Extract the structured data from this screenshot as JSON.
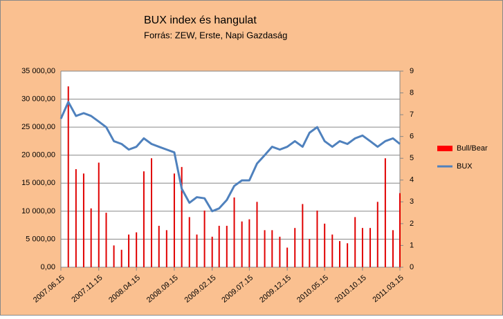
{
  "chart_data": {
    "type": "combo",
    "title": "BUX index és hangulat",
    "subtitle": "Forrás: ZEW, Erste, Napi Gazdaság",
    "x": [
      "2007.06.15",
      "2007.07.15",
      "2007.08.15",
      "2007.09.15",
      "2007.10.15",
      "2007.11.15",
      "2007.12.15",
      "2008.01.15",
      "2008.02.15",
      "2008.03.15",
      "2008.04.15",
      "2008.05.15",
      "2008.06.15",
      "2008.07.15",
      "2008.08.15",
      "2008.09.15",
      "2008.10.15",
      "2008.11.15",
      "2008.12.15",
      "2009.01.15",
      "2009.02.15",
      "2009.03.15",
      "2009.04.15",
      "2009.05.15",
      "2009.06.15",
      "2009.07.15",
      "2009.08.15",
      "2009.09.15",
      "2009.10.15",
      "2009.11.15",
      "2009.12.15",
      "2010.01.15",
      "2010.02.15",
      "2010.03.15",
      "2010.04.15",
      "2010.05.15",
      "2010.06.15",
      "2010.07.15",
      "2010.08.15",
      "2010.09.15",
      "2010.10.15",
      "2010.11.15",
      "2010.12.15",
      "2011.01.15",
      "2011.02.15",
      "2011.03.15"
    ],
    "xlim": [
      "2007.06.15",
      "2011.03.15"
    ],
    "xticks": [
      "2007.06.15",
      "2007.11.15",
      "2008.04.15",
      "2008.09.15",
      "2009.02.15",
      "2009.07.15",
      "2009.12.15",
      "2010.05.15",
      "2010.10.15",
      "2011.03.15"
    ],
    "series": [
      {
        "name": "Bull/Bear",
        "type": "bar",
        "axis": "y2",
        "color": "#e00000",
        "legend_color": "#ff0000",
        "values": [
          null,
          8.3,
          4.5,
          4.3,
          2.7,
          4.8,
          2.5,
          1.0,
          0.8,
          1.5,
          1.6,
          4.4,
          5.0,
          1.9,
          1.7,
          4.3,
          4.6,
          2.3,
          1.5,
          2.6,
          1.4,
          1.9,
          1.9,
          3.2,
          2.1,
          2.2,
          3.0,
          1.7,
          1.7,
          1.4,
          0.9,
          1.8,
          2.9,
          1.3,
          2.6,
          2.0,
          1.5,
          1.2,
          1.1,
          2.3,
          1.8,
          1.8,
          3.0,
          5.0,
          1.7,
          3.4
        ]
      },
      {
        "name": "BUX",
        "type": "line",
        "color": "#4f81bd",
        "values": [
          26500,
          29500,
          27000,
          27500,
          27000,
          26000,
          25000,
          22500,
          22000,
          21000,
          21500,
          23000,
          22000,
          21500,
          21000,
          20500,
          14000,
          11500,
          12500,
          12300,
          10000,
          10500,
          12000,
          14500,
          15500,
          15500,
          18500,
          20000,
          21500,
          21000,
          21500,
          22500,
          21500,
          24000,
          25000,
          22500,
          21500,
          22500,
          22000,
          23000,
          23500,
          22500,
          21500,
          22500,
          23000,
          22000
        ]
      }
    ],
    "ylim": [
      0,
      35000
    ],
    "yticks": [
      {
        "value": 0,
        "label": "0,00"
      },
      {
        "value": 5000,
        "label": "5 000,00"
      },
      {
        "value": 10000,
        "label": "10 000,00"
      },
      {
        "value": 15000,
        "label": "15 000,00"
      },
      {
        "value": 20000,
        "label": "20 000,00"
      },
      {
        "value": 25000,
        "label": "25 000,00"
      },
      {
        "value": 30000,
        "label": "30 000,00"
      },
      {
        "value": 35000,
        "label": "35 000,00"
      }
    ],
    "y2lim": [
      0,
      9
    ],
    "y2ticks": [
      0,
      1,
      2,
      3,
      4,
      5,
      6,
      7,
      8,
      9
    ],
    "grid": true,
    "legend": "right"
  }
}
